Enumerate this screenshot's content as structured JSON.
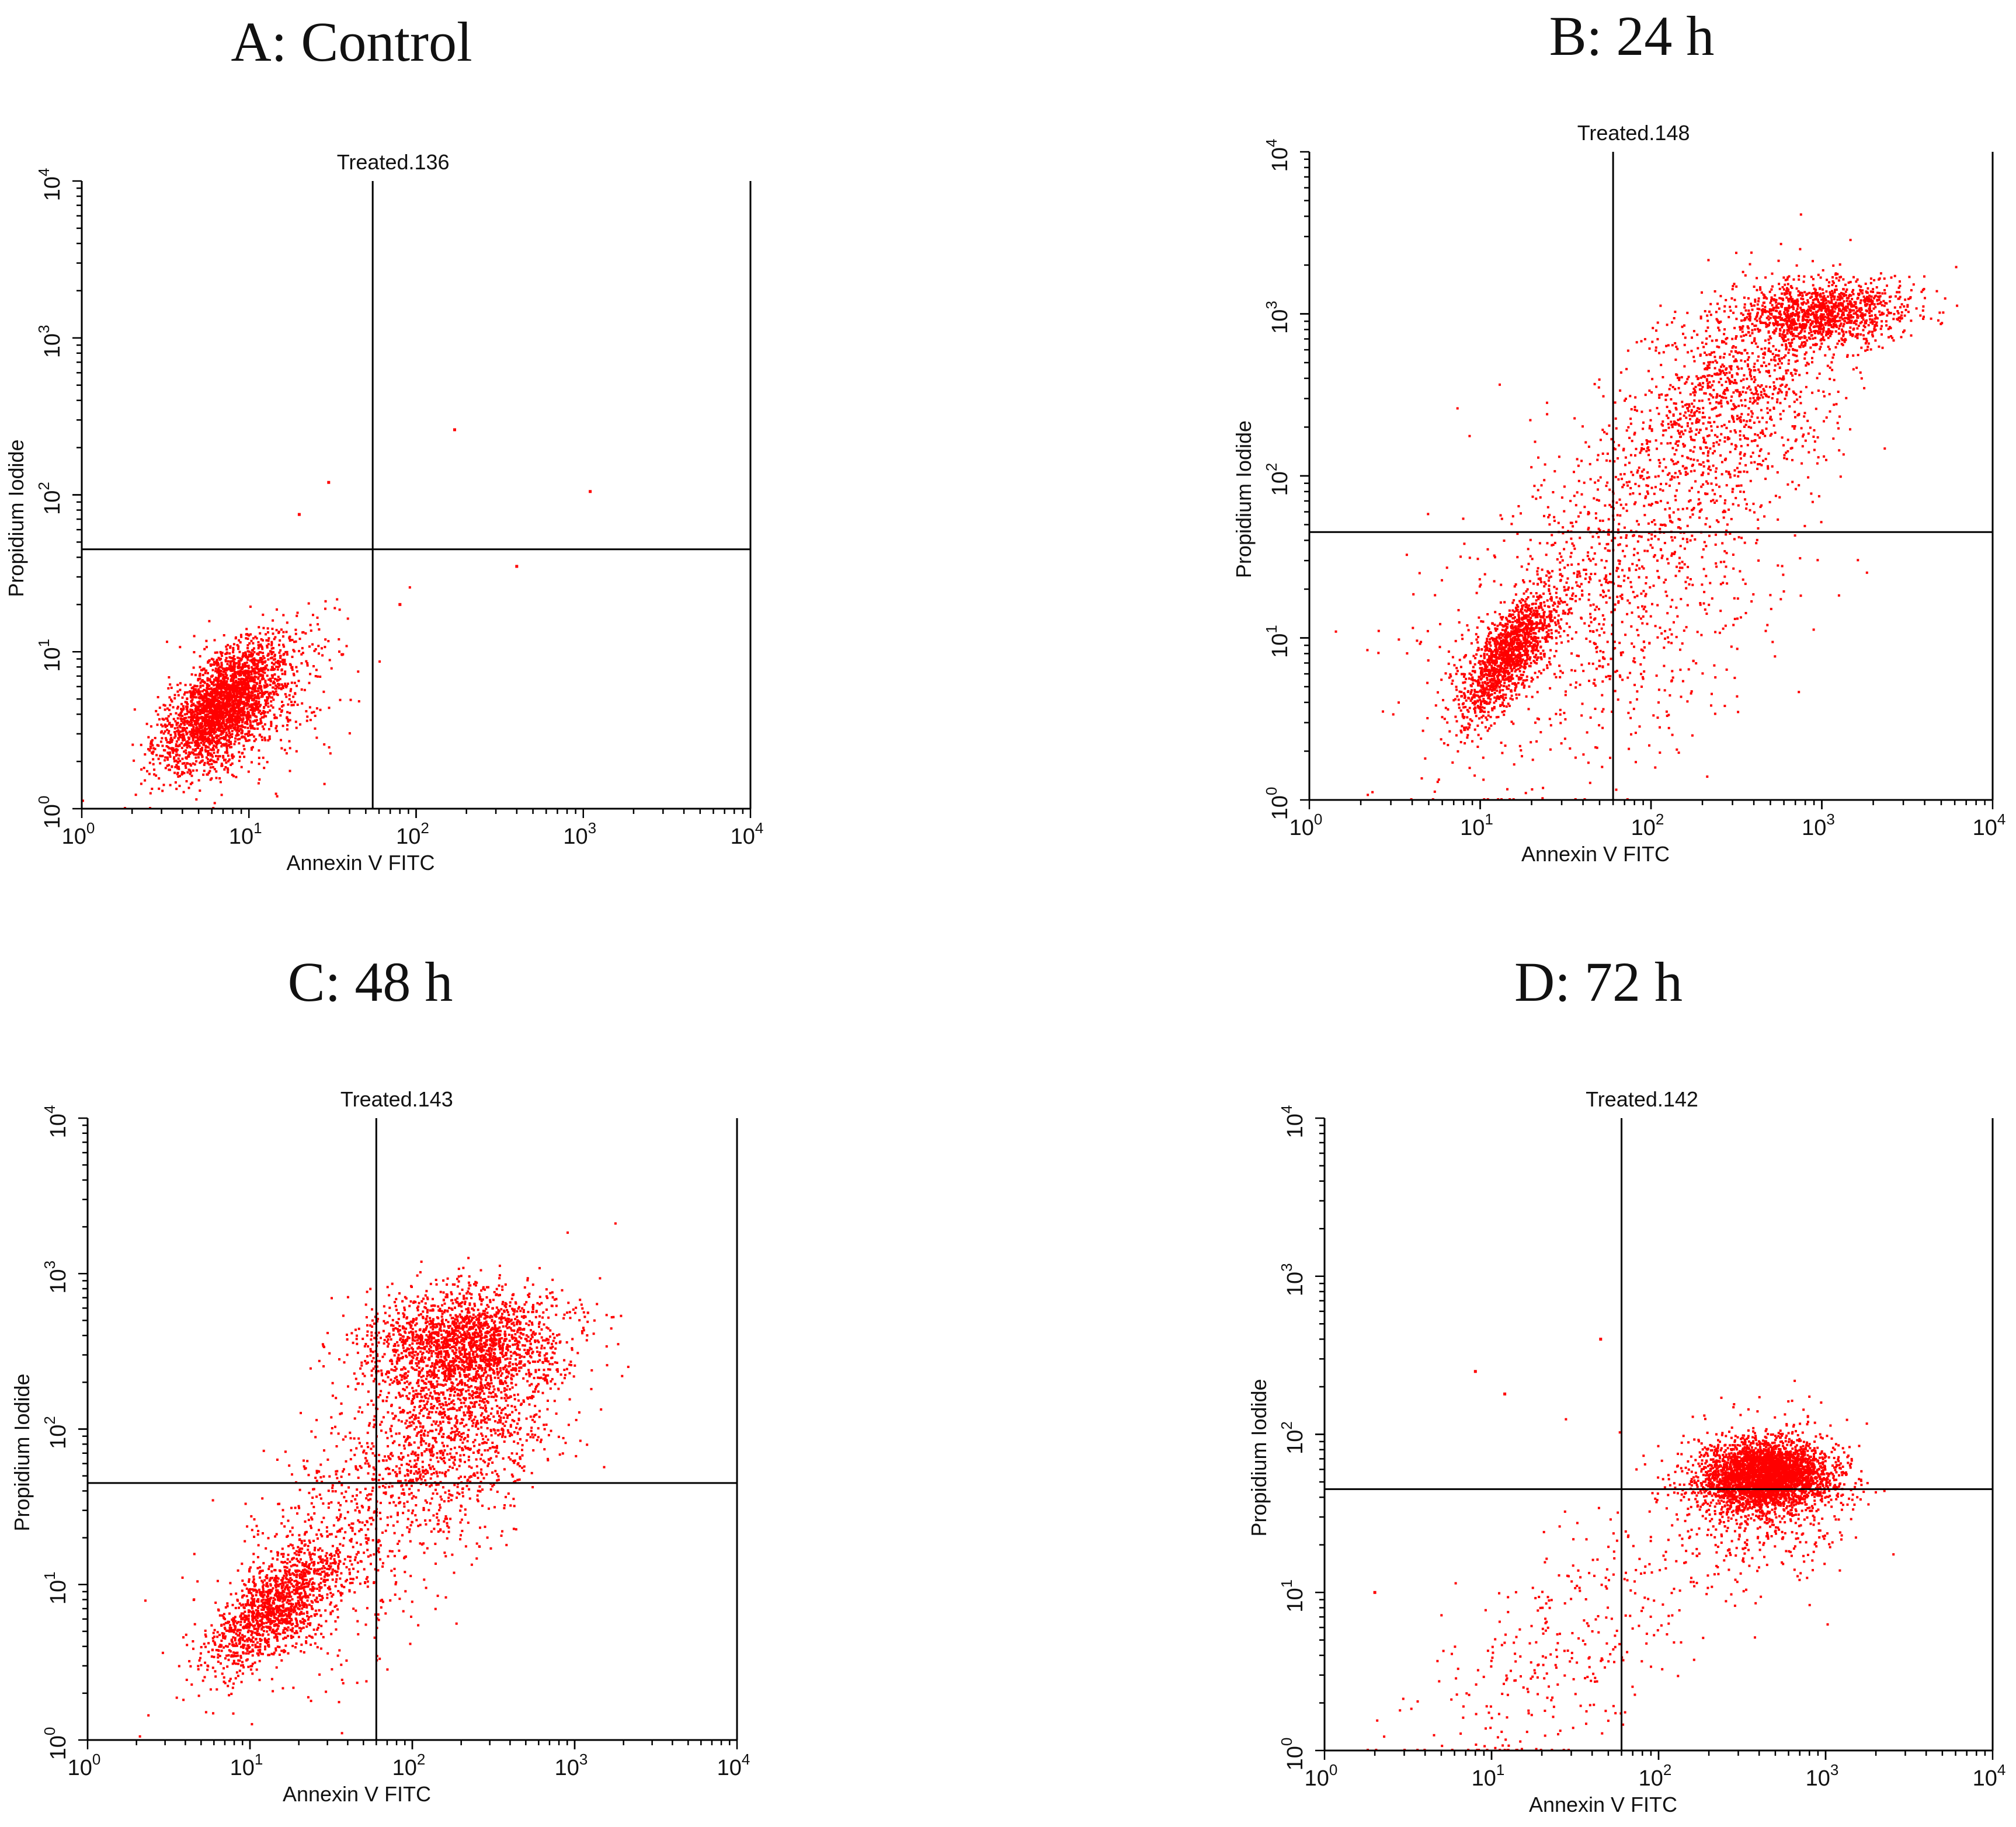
{
  "figure": {
    "panels": [
      {
        "id": "A",
        "title": "A: Control"
      },
      {
        "id": "B",
        "title": "B: 24 h"
      },
      {
        "id": "C",
        "title": "C: 48 h"
      },
      {
        "id": "D",
        "title": "D: 72 h"
      }
    ]
  },
  "style": {
    "dot_color": "#ff0000",
    "axis_color": "#000000",
    "background": "#ffffff"
  },
  "chart_data": [
    {
      "type": "scatter",
      "title": "Treated.136",
      "xlabel": "Annexin V FITC",
      "ylabel": "Propidium Iodide",
      "xscale": "log",
      "yscale": "log",
      "xlim": [
        1,
        10000
      ],
      "ylim": [
        1,
        10000
      ],
      "xticks": [
        1,
        10,
        100,
        1000,
        10000
      ],
      "yticks": [
        1,
        10,
        100,
        1000,
        10000
      ],
      "tick_labels": [
        "10^0",
        "10^1",
        "10^2",
        "10^3",
        "10^4"
      ],
      "quadrant_gate": {
        "x": 55,
        "y": 45
      },
      "clusters": [
        {
          "center": [
            7,
            4.5
          ],
          "spread_log": [
            0.18,
            0.2
          ],
          "count": 2600,
          "corr": 0.6
        },
        {
          "center": [
            12,
            5
          ],
          "spread_log": [
            0.3,
            0.3
          ],
          "count": 300,
          "corr": 0.5
        }
      ],
      "outliers": [
        [
          30,
          120
        ],
        [
          170,
          260
        ],
        [
          1100,
          105
        ],
        [
          400,
          35
        ],
        [
          20,
          75
        ],
        [
          80,
          20
        ]
      ]
    },
    {
      "type": "scatter",
      "title": "Treated.148",
      "xlabel": "Annexin V FITC",
      "ylabel": "Propidium Iodide",
      "xscale": "log",
      "yscale": "log",
      "xlim": [
        1,
        10000
      ],
      "ylim": [
        1,
        10000
      ],
      "xticks": [
        1,
        10,
        100,
        1000,
        10000
      ],
      "yticks": [
        1,
        10,
        100,
        1000,
        10000
      ],
      "tick_labels": [
        "10^0",
        "10^1",
        "10^2",
        "10^3",
        "10^4"
      ],
      "quadrant_gate": {
        "x": 60,
        "y": 45
      },
      "clusters": [
        {
          "center": [
            15,
            8
          ],
          "spread_log": [
            0.15,
            0.2
          ],
          "count": 1500,
          "corr": 0.75
        },
        {
          "center": [
            1000,
            1000
          ],
          "spread_log": [
            0.25,
            0.1
          ],
          "count": 1200,
          "corr": 0.2
        },
        {
          "center": [
            300,
            300
          ],
          "spread_log": [
            0.35,
            0.35
          ],
          "count": 1100,
          "corr": 0.5
        },
        {
          "center": [
            60,
            20
          ],
          "spread_log": [
            0.5,
            0.55
          ],
          "count": 1100,
          "corr": 0.4
        }
      ],
      "outliers": []
    },
    {
      "type": "scatter",
      "title": "Treated.143",
      "xlabel": "Annexin V FITC",
      "ylabel": "Propidium Iodide",
      "xscale": "log",
      "yscale": "log",
      "xlim": [
        1,
        10000
      ],
      "ylim": [
        1,
        10000
      ],
      "xticks": [
        1,
        10,
        100,
        1000,
        10000
      ],
      "yticks": [
        1,
        10,
        100,
        1000,
        10000
      ],
      "tick_labels": [
        "10^0",
        "10^1",
        "10^2",
        "10^3",
        "10^4"
      ],
      "quadrant_gate": {
        "x": 60,
        "y": 45
      },
      "clusters": [
        {
          "center": [
            14,
            7
          ],
          "spread_log": [
            0.2,
            0.2
          ],
          "count": 1300,
          "corr": 0.7
        },
        {
          "center": [
            200,
            350
          ],
          "spread_log": [
            0.3,
            0.18
          ],
          "count": 1800,
          "corr": 0.1
        },
        {
          "center": [
            200,
            120
          ],
          "spread_log": [
            0.3,
            0.35
          ],
          "count": 1300,
          "corr": 0.3
        },
        {
          "center": [
            40,
            20
          ],
          "spread_log": [
            0.4,
            0.45
          ],
          "count": 700,
          "corr": 0.5
        }
      ],
      "outliers": []
    },
    {
      "type": "scatter",
      "title": "Treated.142",
      "xlabel": "Annexin V FITC",
      "ylabel": "Propidium Iodide",
      "xscale": "log",
      "yscale": "log",
      "xlim": [
        1,
        10000
      ],
      "ylim": [
        1,
        10000
      ],
      "xticks": [
        1,
        10,
        100,
        1000,
        10000
      ],
      "yticks": [
        1,
        10,
        100,
        1000,
        10000
      ],
      "tick_labels": [
        "10^0",
        "10^1",
        "10^2",
        "10^3",
        "10^4"
      ],
      "quadrant_gate": {
        "x": 60,
        "y": 45
      },
      "clusters": [
        {
          "center": [
            450,
            55
          ],
          "spread_log": [
            0.18,
            0.1
          ],
          "count": 3200,
          "corr": 0.0
        },
        {
          "center": [
            400,
            40
          ],
          "spread_log": [
            0.28,
            0.25
          ],
          "count": 700,
          "corr": 0.1
        },
        {
          "center": [
            30,
            5
          ],
          "spread_log": [
            0.45,
            0.45
          ],
          "count": 350,
          "corr": 0.6
        }
      ],
      "outliers": [
        [
          45,
          400
        ],
        [
          8,
          250
        ],
        [
          12,
          180
        ],
        [
          2,
          10
        ]
      ]
    }
  ]
}
